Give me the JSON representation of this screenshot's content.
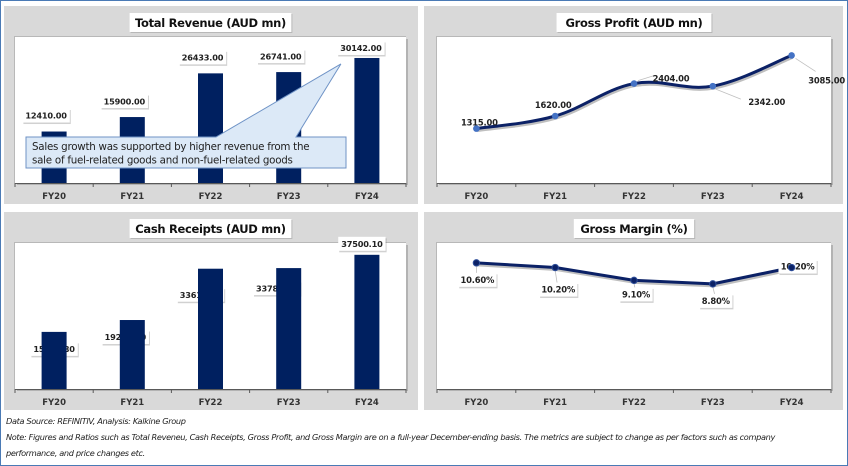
{
  "footer": {
    "source": "Data Source: REFINITIV, Analysis: Kalkine Group",
    "note_line1": "Note: Figures and Ratios such as Total Reveneu, Cash Receipts, Gross Profit, and  Gross Margin are on a full-year December-ending basis. The metrics are subject to change as per factors such as company",
    "note_line2": "performance, and price changes etc."
  },
  "colors": {
    "bar": "#002060",
    "line": "#0b2166",
    "marker": "#4472c4",
    "panel_bg": "#d9d9d9",
    "callout_fill": "#dce9f7",
    "callout_border": "#6f93c6",
    "frame_border": "#4a7ab5"
  },
  "chart_data": [
    {
      "id": "total-revenue",
      "type": "bar",
      "title": "Total Revenue (AUD mn)",
      "categories": [
        "FY20",
        "FY21",
        "FY22",
        "FY23",
        "FY24"
      ],
      "values": [
        12410.0,
        15900.0,
        26433.0,
        26741.0,
        30142.0
      ],
      "labels": [
        "12410.00",
        "15900.00",
        "26433.00",
        "26741.00",
        "30142.00"
      ],
      "ylim": [
        0,
        35200
      ],
      "grid": false,
      "annotation": "Sales growth was supported by higher revenue from the sale of fuel-related goods and non-fuel-related goods",
      "annotation_lines": [
        "Sales growth was supported by higher revenue from the",
        "sale of fuel-related goods and non-fuel-related goods"
      ],
      "annotation_target": "FY24"
    },
    {
      "id": "gross-profit",
      "type": "line",
      "title": "Gross Profit (AUD mn)",
      "categories": [
        "FY20",
        "FY21",
        "FY22",
        "FY23",
        "FY24"
      ],
      "values": [
        1315.0,
        1620.0,
        2404.0,
        2342.0,
        3085.0
      ],
      "labels": [
        "1315.00",
        "1620.00",
        "2404.00",
        "2342.00",
        "3085.00"
      ],
      "ylim": [
        0,
        3530
      ],
      "grid": false,
      "smooth": true
    },
    {
      "id": "cash-receipts",
      "type": "bar",
      "title": "Cash Receipts (AUD mn)",
      "categories": [
        "FY20",
        "FY21",
        "FY22",
        "FY23",
        "FY24"
      ],
      "values": [
        15958.8,
        19276.3,
        33615.0,
        33788.0,
        37500.1
      ],
      "labels": [
        "15958.80",
        "19276.30",
        "33615.00",
        "33788.00",
        "37500.10"
      ],
      "ylim": [
        0,
        40800
      ],
      "grid": false
    },
    {
      "id": "gross-margin",
      "type": "line",
      "title": "Gross Margin (%)",
      "categories": [
        "FY20",
        "FY21",
        "FY22",
        "FY23",
        "FY24"
      ],
      "values": [
        10.6,
        10.2,
        9.1,
        8.8,
        10.2
      ],
      "labels": [
        "10.60%",
        "10.20%",
        "9.10%",
        "8.80%",
        "10.20%"
      ],
      "ylim": [
        -0.2,
        12.3
      ],
      "grid": false,
      "smooth": false
    }
  ]
}
